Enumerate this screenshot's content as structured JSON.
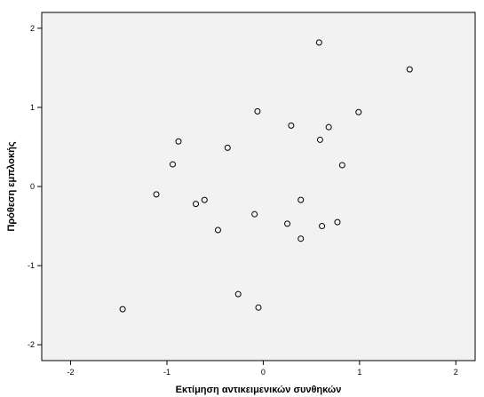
{
  "chart_data": {
    "type": "scatter",
    "title": "",
    "xlabel": "Εκτίμηση αντικειμενικών συνθηκών",
    "ylabel": "Πρόθεση εμπλοκής",
    "xlim": [
      -2.3,
      2.2
    ],
    "ylim": [
      -2.2,
      2.2
    ],
    "x_ticks": [
      -2,
      -1,
      0,
      1,
      2
    ],
    "y_ticks": [
      2,
      1,
      0,
      -1,
      -2
    ],
    "grid": false,
    "colors": {
      "plot_background": "#f2f2f2",
      "marker_stroke": "#000000",
      "axis": "#000000"
    },
    "points": [
      {
        "x": 0.58,
        "y": 1.82
      },
      {
        "x": 1.52,
        "y": 1.48
      },
      {
        "x": -0.06,
        "y": 0.95
      },
      {
        "x": 0.99,
        "y": 0.94
      },
      {
        "x": 0.29,
        "y": 0.77
      },
      {
        "x": 0.68,
        "y": 0.75
      },
      {
        "x": -0.88,
        "y": 0.57
      },
      {
        "x": 0.59,
        "y": 0.59
      },
      {
        "x": -0.37,
        "y": 0.49
      },
      {
        "x": -0.94,
        "y": 0.28
      },
      {
        "x": 0.82,
        "y": 0.27
      },
      {
        "x": -1.11,
        "y": -0.1
      },
      {
        "x": -0.61,
        "y": -0.17
      },
      {
        "x": 0.39,
        "y": -0.17
      },
      {
        "x": -0.7,
        "y": -0.22
      },
      {
        "x": -0.09,
        "y": -0.35
      },
      {
        "x": 0.25,
        "y": -0.47
      },
      {
        "x": 0.77,
        "y": -0.45
      },
      {
        "x": 0.61,
        "y": -0.5
      },
      {
        "x": -0.47,
        "y": -0.55
      },
      {
        "x": 0.39,
        "y": -0.66
      },
      {
        "x": -0.26,
        "y": -1.36
      },
      {
        "x": -0.05,
        "y": -1.53
      },
      {
        "x": -1.46,
        "y": -1.55
      }
    ]
  }
}
